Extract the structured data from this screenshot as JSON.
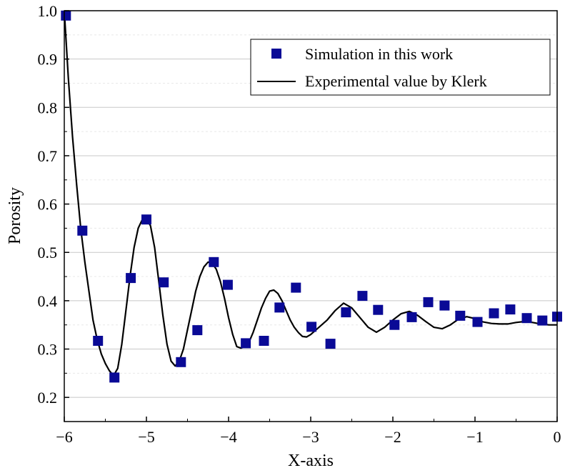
{
  "chart_data": {
    "type": "scatter",
    "title": "",
    "xlabel": "X-axis",
    "ylabel": "Porosity",
    "xlim": [
      -6,
      0
    ],
    "ylim": [
      0.15,
      1.0
    ],
    "xticks": [
      -6,
      -5,
      -4,
      -3,
      -2,
      -1,
      0
    ],
    "xtick_labels": [
      "−6",
      "−5",
      "−4",
      "−3",
      "−2",
      "−1",
      "0"
    ],
    "yticks": [
      0.2,
      0.3,
      0.4,
      0.5,
      0.6,
      0.7,
      0.8,
      0.9,
      1.0
    ],
    "ytick_labels": [
      "0.2",
      "0.3",
      "0.4",
      "0.5",
      "0.6",
      "0.7",
      "0.8",
      "0.9",
      "1.0"
    ],
    "grid": true,
    "legend_position": "top-right",
    "series": [
      {
        "name": "Simulation in this work",
        "kind": "markers",
        "marker": "square",
        "color": "#0a0a96",
        "x": [
          -5.98,
          -5.78,
          -5.59,
          -5.39,
          -5.19,
          -5.0,
          -4.79,
          -4.58,
          -4.38,
          -4.18,
          -4.01,
          -3.79,
          -3.57,
          -3.38,
          -3.18,
          -2.99,
          -2.76,
          -2.57,
          -2.37,
          -2.18,
          -1.98,
          -1.77,
          -1.57,
          -1.37,
          -1.18,
          -0.97,
          -0.77,
          -0.57,
          -0.37,
          -0.18,
          0.0
        ],
        "y": [
          0.99,
          0.545,
          0.317,
          0.241,
          0.447,
          0.568,
          0.438,
          0.273,
          0.339,
          0.48,
          0.433,
          0.312,
          0.317,
          0.386,
          0.427,
          0.346,
          0.311,
          0.376,
          0.41,
          0.381,
          0.35,
          0.366,
          0.397,
          0.39,
          0.369,
          0.356,
          0.374,
          0.382,
          0.364,
          0.359,
          0.367
        ]
      },
      {
        "name": "Experimental value by Klerk",
        "kind": "line",
        "color": "#000000",
        "x": [
          -6.0,
          -5.95,
          -5.9,
          -5.85,
          -5.8,
          -5.75,
          -5.7,
          -5.65,
          -5.6,
          -5.55,
          -5.5,
          -5.45,
          -5.4,
          -5.35,
          -5.3,
          -5.25,
          -5.2,
          -5.15,
          -5.1,
          -5.05,
          -5.0,
          -4.95,
          -4.9,
          -4.85,
          -4.8,
          -4.75,
          -4.7,
          -4.65,
          -4.6,
          -4.55,
          -4.5,
          -4.45,
          -4.4,
          -4.35,
          -4.3,
          -4.25,
          -4.2,
          -4.15,
          -4.1,
          -4.05,
          -4.0,
          -3.95,
          -3.9,
          -3.85,
          -3.8,
          -3.75,
          -3.7,
          -3.65,
          -3.6,
          -3.55,
          -3.5,
          -3.45,
          -3.4,
          -3.35,
          -3.3,
          -3.25,
          -3.2,
          -3.15,
          -3.1,
          -3.05,
          -3.0,
          -2.9,
          -2.8,
          -2.7,
          -2.6,
          -2.5,
          -2.4,
          -2.3,
          -2.2,
          -2.1,
          -2.0,
          -1.9,
          -1.8,
          -1.7,
          -1.6,
          -1.5,
          -1.4,
          -1.3,
          -1.2,
          -1.1,
          -1.0,
          -0.9,
          -0.8,
          -0.7,
          -0.6,
          -0.5,
          -0.4,
          -0.3,
          -0.2,
          -0.1,
          0.0
        ],
        "y": [
          1.0,
          0.86,
          0.74,
          0.64,
          0.55,
          0.48,
          0.42,
          0.36,
          0.32,
          0.29,
          0.27,
          0.255,
          0.245,
          0.26,
          0.31,
          0.38,
          0.45,
          0.51,
          0.55,
          0.568,
          0.57,
          0.555,
          0.51,
          0.44,
          0.37,
          0.31,
          0.275,
          0.265,
          0.275,
          0.3,
          0.34,
          0.38,
          0.42,
          0.45,
          0.47,
          0.48,
          0.478,
          0.465,
          0.44,
          0.405,
          0.365,
          0.33,
          0.305,
          0.302,
          0.305,
          0.315,
          0.335,
          0.36,
          0.385,
          0.405,
          0.42,
          0.422,
          0.415,
          0.4,
          0.38,
          0.36,
          0.345,
          0.334,
          0.326,
          0.325,
          0.33,
          0.345,
          0.36,
          0.38,
          0.395,
          0.385,
          0.365,
          0.345,
          0.335,
          0.345,
          0.36,
          0.373,
          0.378,
          0.37,
          0.357,
          0.345,
          0.342,
          0.35,
          0.362,
          0.367,
          0.363,
          0.356,
          0.353,
          0.352,
          0.352,
          0.355,
          0.357,
          0.355,
          0.352,
          0.35,
          0.35
        ]
      }
    ]
  }
}
